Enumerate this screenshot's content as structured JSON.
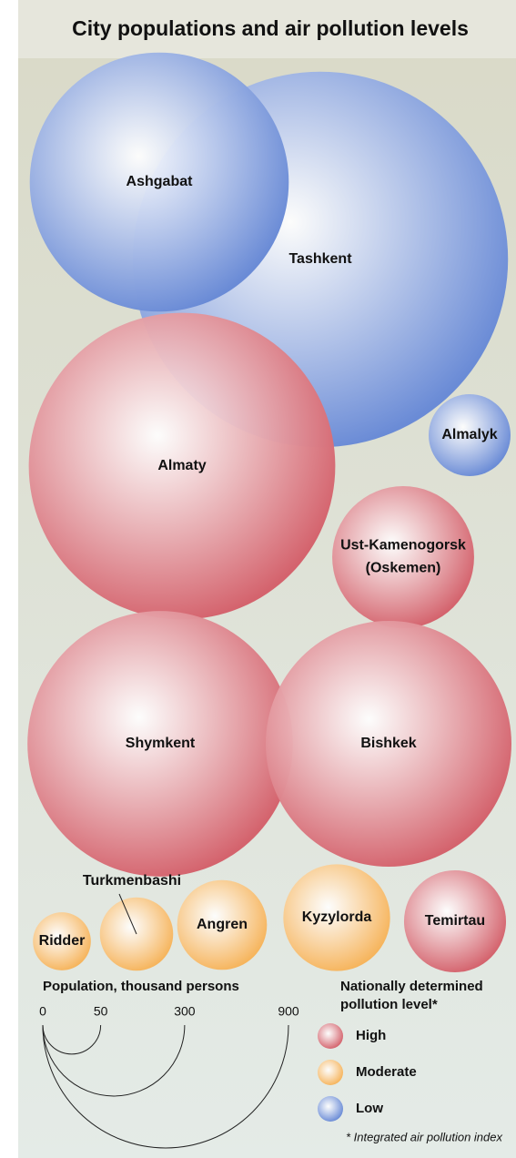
{
  "chart_data": {
    "type": "bubble",
    "title": "City populations and air pollution levels",
    "series": [
      {
        "name": "High",
        "color": "#d4636d",
        "labels": [
          "Almaty",
          [
            "Ust-Kamenogorsk",
            "(Oskemen)"
          ],
          "Shymkent",
          "Bishkek",
          "Temirtau"
        ],
        "values": [
          1400,
          300,
          1050,
          900,
          155
        ]
      },
      {
        "name": "Moderate",
        "color": "#f6b45c",
        "labels": [
          "Ridder",
          "Turkmenbashi",
          "Angren",
          "Kyzylorda"
        ],
        "values": [
          50,
          80,
          120,
          170
        ]
      },
      {
        "name": "Low",
        "color": "#6a8bd6",
        "labels": [
          "Tashkent",
          "Ashgabat",
          "Almalyk"
        ],
        "values": [
          2100,
          1000,
          100
        ]
      }
    ],
    "size_legend": {
      "title": "Population, thousand persons",
      "ticks": [
        0,
        50,
        300,
        900
      ]
    },
    "legend_title": [
      "Nationally determined",
      "pollution level*"
    ],
    "footnote": "* Integrated air pollution index"
  }
}
